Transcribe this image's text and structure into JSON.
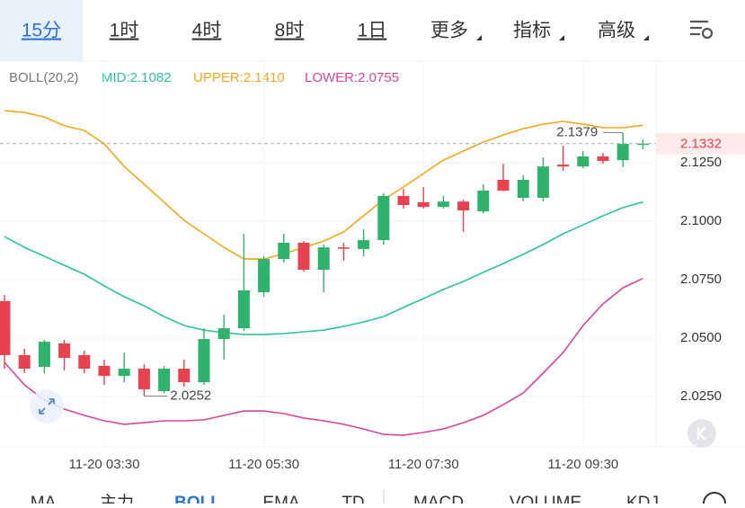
{
  "tabs": [
    "15分",
    "1时",
    "4时",
    "8时",
    "1日",
    "更多",
    "指标",
    "高级"
  ],
  "indicator": {
    "label": "BOLL(20,2)",
    "mid": "MID:2.1082",
    "upper": "UPPER:2.1410",
    "lower": "LOWER:2.0755"
  },
  "bottom_tabs": [
    "MA",
    "主力",
    "BOLL",
    "EMA",
    "TD",
    "MACD",
    "VOLUME",
    "KDJ"
  ],
  "chart_data": {
    "type": "candlestick",
    "categories": [
      null,
      null,
      null,
      null,
      null,
      "11-20 03:30",
      null,
      null,
      null,
      null,
      null,
      null,
      null,
      "11-20 05:30",
      null,
      null,
      null,
      null,
      null,
      null,
      null,
      "11-20 07:30",
      null,
      null,
      null,
      null,
      null,
      null,
      null,
      "11-20 09:30",
      null,
      null,
      null
    ],
    "open": [
      2.0658,
      2.0427,
      2.0377,
      2.0477,
      2.0427,
      2.0381,
      2.0338,
      2.0369,
      2.0273,
      2.0369,
      2.0311,
      2.0496,
      2.0542,
      2.0696,
      2.0838,
      2.0908,
      2.0792,
      2.0888,
      2.0881,
      2.0919,
      2.1108,
      2.1081,
      2.1061,
      2.1084,
      2.1042,
      2.1177,
      2.11,
      2.11,
      2.1242,
      2.1234,
      2.1277,
      2.1261,
      2.1328
    ],
    "high": [
      2.0684,
      2.0454,
      2.0492,
      2.0492,
      2.0446,
      2.0408,
      2.0438,
      2.0388,
      2.0381,
      2.0408,
      2.0542,
      2.06,
      2.0946,
      2.085,
      2.0946,
      2.0915,
      2.09,
      2.0908,
      2.0965,
      2.1119,
      2.1138,
      2.1146,
      2.1108,
      2.1092,
      2.1158,
      2.1246,
      2.1196,
      2.1273,
      2.1323,
      2.13,
      2.1292,
      2.1379,
      2.135
    ],
    "low": [
      2.0369,
      2.035,
      2.035,
      2.0361,
      2.035,
      2.03,
      2.0311,
      2.0252,
      2.0265,
      2.0292,
      2.03,
      2.0408,
      2.0531,
      2.0677,
      2.0823,
      2.0784,
      2.0696,
      2.0831,
      2.085,
      2.09,
      2.1054,
      2.1054,
      2.1054,
      2.0954,
      2.1034,
      2.1127,
      2.1084,
      2.1084,
      2.1215,
      2.1227,
      2.1246,
      2.1231,
      2.1308
    ],
    "close": [
      2.0427,
      2.0369,
      2.0484,
      2.0415,
      2.0369,
      2.0338,
      2.0369,
      2.0281,
      2.0369,
      2.0311,
      2.0496,
      2.0542,
      2.0704,
      2.0838,
      2.0908,
      2.0792,
      2.0888,
      2.0884,
      2.0919,
      2.1108,
      2.1069,
      2.1061,
      2.1084,
      2.1046,
      2.1131,
      2.1131,
      2.1177,
      2.1234,
      2.1234,
      2.1277,
      2.1258,
      2.1331,
      2.1332
    ],
    "up_color": "#2fb26c",
    "down_color": "#e7424f",
    "series": [
      {
        "color": "#f0a81c",
        "values": [
          2.1473,
          2.1465,
          2.1446,
          2.1408,
          2.1388,
          2.1331,
          2.1234,
          2.1158,
          2.1081,
          2.1004,
          2.0946,
          2.0888,
          2.0838,
          2.0838,
          2.0861,
          2.0888,
          2.0915,
          2.0954,
          2.1023,
          2.1092,
          2.1146,
          2.1204,
          2.1261,
          2.13,
          2.1338,
          2.1369,
          2.1396,
          2.1415,
          2.1427,
          2.1415,
          2.14,
          2.14,
          2.141
        ]
      },
      {
        "color": "#2cc39e",
        "values": [
          2.0934,
          2.0888,
          2.085,
          2.0811,
          2.0773,
          2.0723,
          2.0677,
          2.0638,
          2.0592,
          2.0554,
          2.0534,
          2.0523,
          2.0515,
          2.0515,
          2.0519,
          2.0527,
          2.0534,
          2.055,
          2.0569,
          2.0592,
          2.0631,
          2.0669,
          2.0708,
          2.0742,
          2.0781,
          2.0819,
          2.0858,
          2.09,
          2.0946,
          2.0984,
          2.1023,
          2.1058,
          2.1082
        ]
      },
      {
        "color": "#d8459d",
        "values": [
          2.0396,
          2.03,
          2.0234,
          2.0196,
          2.0169,
          2.0146,
          2.0131,
          2.0138,
          2.0146,
          2.0146,
          2.015,
          2.0169,
          2.0188,
          2.0188,
          2.0177,
          2.0158,
          2.0146,
          2.0131,
          2.0111,
          2.0088,
          2.0084,
          2.0096,
          2.0111,
          2.0138,
          2.0169,
          2.0215,
          2.0265,
          2.035,
          2.0438,
          2.0554,
          2.0646,
          2.0715,
          2.0755
        ]
      }
    ],
    "ylim": [
      2.0023,
      2.1677
    ],
    "yticks": [
      {
        "value": 2.125,
        "label": "2.1250"
      },
      {
        "value": 2.1,
        "label": "2.1000"
      },
      {
        "value": 2.075,
        "label": "2.0750"
      },
      {
        "value": 2.05,
        "label": "2.0500"
      },
      {
        "value": 2.025,
        "label": "2.0250"
      }
    ],
    "last_price": 2.1332,
    "max_label": 2.1379,
    "min_label": 2.0252,
    "grid": true
  }
}
